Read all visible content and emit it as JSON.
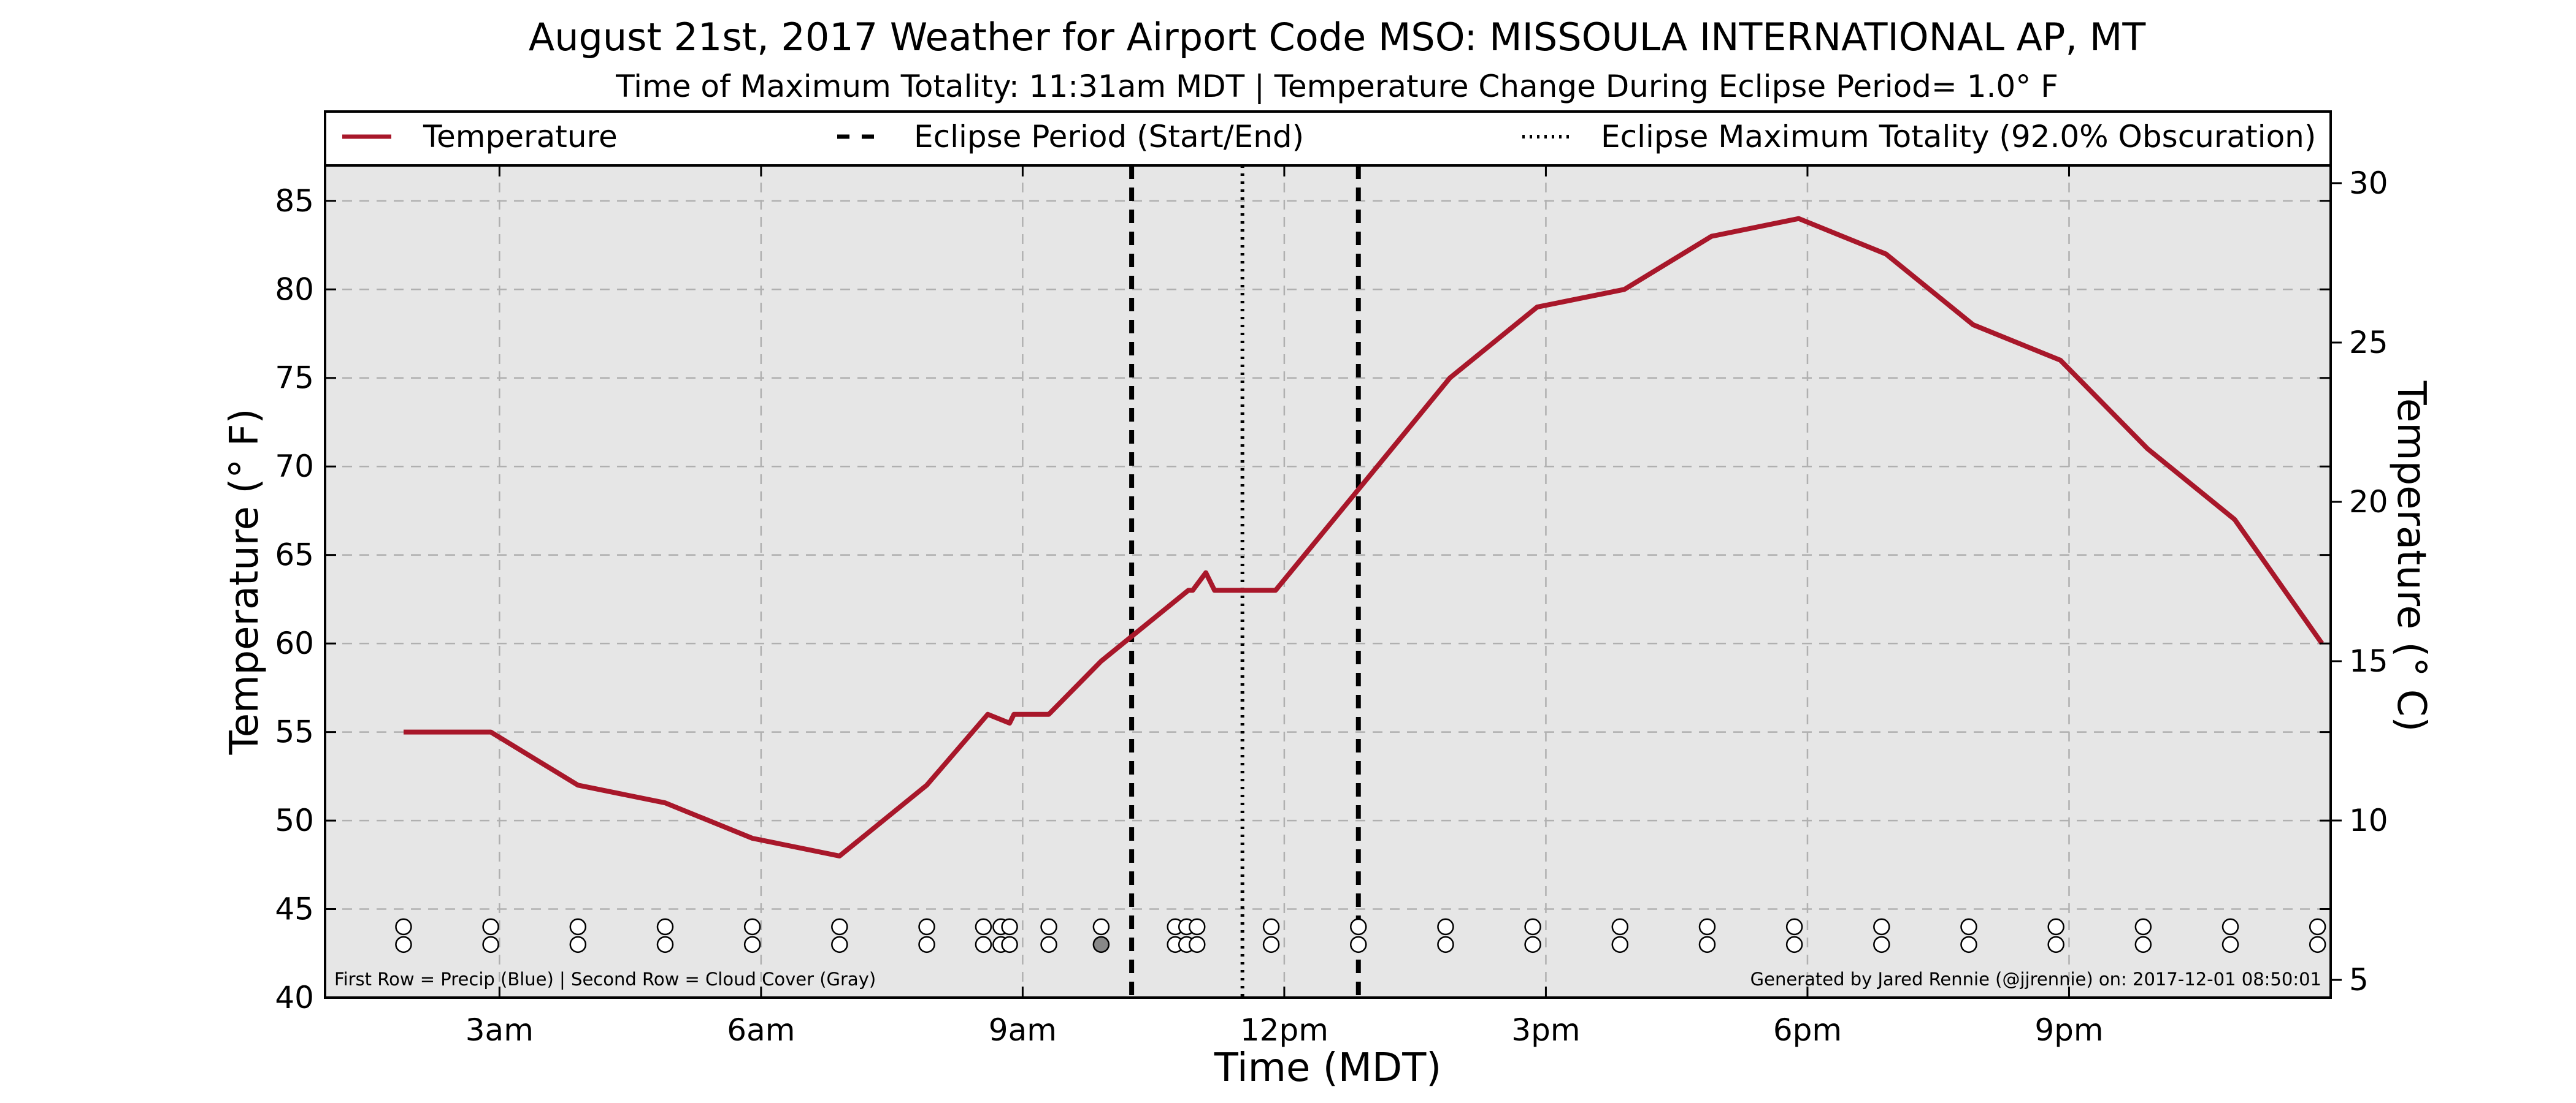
{
  "chart_data": {
    "type": "line",
    "title": "August 21st, 2017 Weather for Airport Code MSO: MISSOULA INTERNATIONAL AP, MT",
    "subtitle": "Time of Maximum Totality: 11:31am MDT | Temperature Change During Eclipse Period= 1.0° F",
    "xlabel": "Time (MDT)",
    "ylabel": "Temperature (° F)",
    "ylabel_right": "Temperature (° C)",
    "xlim": [
      1.0,
      24.0
    ],
    "ylim": [
      40,
      87
    ],
    "ylim_right_c": [
      4.444,
      30.556
    ],
    "x_ticks": [
      {
        "value": 3,
        "label": "3am"
      },
      {
        "value": 6,
        "label": "6am"
      },
      {
        "value": 9,
        "label": "9am"
      },
      {
        "value": 12,
        "label": "12pm"
      },
      {
        "value": 15,
        "label": "3pm"
      },
      {
        "value": 18,
        "label": "6pm"
      },
      {
        "value": 21,
        "label": "9pm"
      }
    ],
    "y_ticks": [
      "40",
      "45",
      "50",
      "55",
      "60",
      "65",
      "70",
      "75",
      "80",
      "85"
    ],
    "y_ticks_right": [
      "5",
      "10",
      "15",
      "20",
      "25",
      "30"
    ],
    "grid": true,
    "legend_position": "top",
    "series": [
      {
        "name": "Temperature",
        "color": "#a8172a",
        "x": [
          1.9,
          2.9,
          3.9,
          4.9,
          5.9,
          6.9,
          7.9,
          8.6,
          8.85,
          8.9,
          9.3,
          9.9,
          10.9,
          10.95,
          11.1,
          11.2,
          11.9,
          12.9,
          13.9,
          14.9,
          15.9,
          16.9,
          17.9,
          18.9,
          19.9,
          20.9,
          21.9,
          22.9,
          23.9
        ],
        "y": [
          55,
          55,
          52,
          51,
          49,
          48,
          52,
          56,
          55.5,
          56,
          56,
          59,
          63,
          63,
          64,
          63,
          63,
          69,
          75,
          79,
          80,
          83,
          84,
          82,
          78,
          76,
          71,
          67,
          60
        ]
      }
    ],
    "eclipse": {
      "legend_start_end": "Eclipse Period (Start/End)",
      "legend_max": "Eclipse Maximum Totality (92.0% Obscuration)",
      "start": 10.25,
      "end": 12.85,
      "max": 11.52
    },
    "markers": {
      "row1_y": 44,
      "row2_y": 43,
      "row1": [
        {
          "x": 1.9,
          "fill": "white"
        },
        {
          "x": 2.9,
          "fill": "white"
        },
        {
          "x": 3.9,
          "fill": "white"
        },
        {
          "x": 4.9,
          "fill": "white"
        },
        {
          "x": 5.9,
          "fill": "white"
        },
        {
          "x": 6.9,
          "fill": "white"
        },
        {
          "x": 7.9,
          "fill": "white"
        },
        {
          "x": 8.55,
          "fill": "white"
        },
        {
          "x": 8.75,
          "fill": "white"
        },
        {
          "x": 8.85,
          "fill": "white"
        },
        {
          "x": 9.3,
          "fill": "white"
        },
        {
          "x": 9.9,
          "fill": "white"
        },
        {
          "x": 10.75,
          "fill": "white"
        },
        {
          "x": 10.88,
          "fill": "white"
        },
        {
          "x": 11.0,
          "fill": "white"
        },
        {
          "x": 11.85,
          "fill": "white"
        },
        {
          "x": 12.85,
          "fill": "white"
        },
        {
          "x": 13.85,
          "fill": "white"
        },
        {
          "x": 14.85,
          "fill": "white"
        },
        {
          "x": 15.85,
          "fill": "white"
        },
        {
          "x": 16.85,
          "fill": "white"
        },
        {
          "x": 17.85,
          "fill": "white"
        },
        {
          "x": 18.85,
          "fill": "white"
        },
        {
          "x": 19.85,
          "fill": "white"
        },
        {
          "x": 20.85,
          "fill": "white"
        },
        {
          "x": 21.85,
          "fill": "white"
        },
        {
          "x": 22.85,
          "fill": "white"
        },
        {
          "x": 23.85,
          "fill": "white"
        }
      ],
      "row2": [
        {
          "x": 1.9,
          "fill": "white"
        },
        {
          "x": 2.9,
          "fill": "white"
        },
        {
          "x": 3.9,
          "fill": "white"
        },
        {
          "x": 4.9,
          "fill": "white"
        },
        {
          "x": 5.9,
          "fill": "white"
        },
        {
          "x": 6.9,
          "fill": "white"
        },
        {
          "x": 7.9,
          "fill": "white"
        },
        {
          "x": 8.55,
          "fill": "white"
        },
        {
          "x": 8.75,
          "fill": "white"
        },
        {
          "x": 8.85,
          "fill": "white"
        },
        {
          "x": 9.3,
          "fill": "white"
        },
        {
          "x": 9.9,
          "fill": "#888888"
        },
        {
          "x": 10.75,
          "fill": "white"
        },
        {
          "x": 10.88,
          "fill": "white"
        },
        {
          "x": 11.0,
          "fill": "white"
        },
        {
          "x": 11.85,
          "fill": "white"
        },
        {
          "x": 12.85,
          "fill": "white"
        },
        {
          "x": 13.85,
          "fill": "white"
        },
        {
          "x": 14.85,
          "fill": "white"
        },
        {
          "x": 15.85,
          "fill": "white"
        },
        {
          "x": 16.85,
          "fill": "white"
        },
        {
          "x": 17.85,
          "fill": "white"
        },
        {
          "x": 18.85,
          "fill": "white"
        },
        {
          "x": 19.85,
          "fill": "white"
        },
        {
          "x": 20.85,
          "fill": "white"
        },
        {
          "x": 21.85,
          "fill": "white"
        },
        {
          "x": 22.85,
          "fill": "white"
        },
        {
          "x": 23.85,
          "fill": "white"
        }
      ]
    },
    "footnote_left": "First Row = Precip (Blue) | Second Row = Cloud Cover (Gray)",
    "footnote_right": "Generated by Jared Rennie (@jjrennie) on: 2017-12-01 08:50:01",
    "colors": {
      "plot_background": "#e6e6e6",
      "grid": "#b0b0b0",
      "temperature_line": "#a8172a",
      "eclipse_lines": "#000000"
    }
  }
}
